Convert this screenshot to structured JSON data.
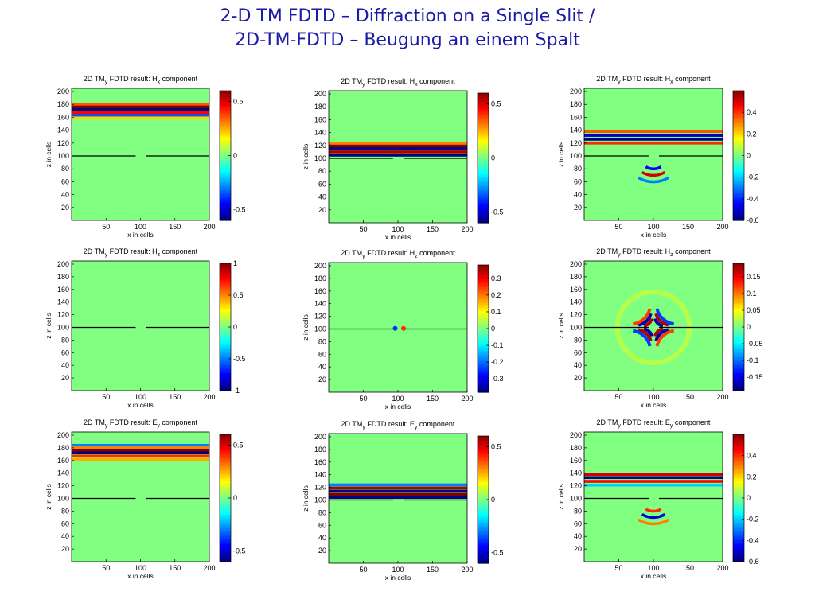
{
  "title": {
    "line1": "2-D TM FDTD – Diffraction on a Single Slit /",
    "line2": "2D-TM-FDTD – Beugung an einem Spalt"
  },
  "colors": {
    "background": "#80ff80",
    "title": "#1a1aa6",
    "slit_line": "#000000"
  },
  "chart_data": [
    {
      "type": "heatmap",
      "title_parts": [
        "2D TM",
        "y",
        " FDTD result: H",
        "x",
        " component"
      ],
      "xlabel": "x in cells",
      "ylabel": "z in cells",
      "xlim": [
        0,
        200
      ],
      "ylim": [
        0,
        205
      ],
      "xticks": [
        50,
        100,
        150,
        200
      ],
      "yticks": [
        20,
        40,
        60,
        80,
        100,
        120,
        140,
        160,
        180,
        200
      ],
      "colorbar": {
        "min": -0.6,
        "max": 0.6,
        "ticks": [
          0.5,
          0,
          -0.5
        ],
        "tick_labels": [
          "0.5",
          "0",
          "-0.5"
        ]
      },
      "slit": {
        "z": 100,
        "x_from": 93,
        "x_to": 108
      },
      "wave": {
        "bands": [
          {
            "z": 180,
            "v": 0.35
          },
          {
            "z": 176,
            "v": 0.6
          },
          {
            "z": 172,
            "v": -0.6
          },
          {
            "z": 167,
            "v": 0.45
          },
          {
            "z": 163,
            "v": -0.35
          },
          {
            "z": 159,
            "v": 0.2
          }
        ]
      }
    },
    {
      "type": "heatmap",
      "title_parts": [
        "2D TM",
        "y",
        " FDTD result: H",
        "x",
        " component"
      ],
      "xlabel": "x in cells",
      "ylabel": "z in cells",
      "xlim": [
        0,
        200
      ],
      "ylim": [
        0,
        205
      ],
      "xticks": [
        50,
        100,
        150,
        200
      ],
      "yticks": [
        20,
        40,
        60,
        80,
        100,
        120,
        140,
        160,
        180,
        200
      ],
      "colorbar": {
        "min": -0.6,
        "max": 0.6,
        "ticks": [
          0.5,
          0,
          -0.5
        ],
        "tick_labels": [
          "0.5",
          "0",
          "-0.5"
        ]
      },
      "slit": {
        "z": 100,
        "x_from": 93,
        "x_to": 108
      },
      "wave": {
        "bands": [
          {
            "z": 123,
            "v": 0.3
          },
          {
            "z": 119,
            "v": 0.6
          },
          {
            "z": 115,
            "v": -0.6
          },
          {
            "z": 110,
            "v": 0.55
          },
          {
            "z": 105,
            "v": -0.65
          }
        ]
      }
    },
    {
      "type": "heatmap",
      "title_parts": [
        "2D TM",
        "y",
        " FDTD result: H",
        "x",
        " component"
      ],
      "xlabel": "x in cells",
      "ylabel": "z in cells",
      "xlim": [
        0,
        200
      ],
      "ylim": [
        0,
        205
      ],
      "xticks": [
        50,
        100,
        150,
        200
      ],
      "yticks": [
        20,
        40,
        60,
        80,
        100,
        120,
        140,
        160,
        180,
        200
      ],
      "colorbar": {
        "min": -0.6,
        "max": 0.6,
        "ticks": [
          0.4,
          0.2,
          0,
          -0.2,
          -0.4,
          -0.6
        ],
        "tick_labels": [
          "0.4",
          "0.2",
          "0",
          "-0.2",
          "-0.4",
          "-0.6"
        ]
      },
      "slit": {
        "z": 100,
        "x_from": 93,
        "x_to": 108
      },
      "wave": {
        "bands": [
          {
            "z": 138,
            "v": 0.35
          },
          {
            "z": 132,
            "v": -0.5
          },
          {
            "z": 126,
            "v": -0.6
          },
          {
            "z": 120,
            "v": 0.4
          }
        ],
        "rings": [
          {
            "r": 20,
            "v": -0.45
          },
          {
            "r": 30,
            "v": 0.5
          },
          {
            "r": 40,
            "v": -0.3
          }
        ]
      }
    },
    {
      "type": "heatmap",
      "title_parts": [
        "2D TM",
        "y",
        " FDTD result: H",
        "z",
        " component"
      ],
      "xlabel": "x in cells",
      "ylabel": "z in cells",
      "xlim": [
        0,
        200
      ],
      "ylim": [
        0,
        205
      ],
      "xticks": [
        50,
        100,
        150,
        200
      ],
      "yticks": [
        20,
        40,
        60,
        80,
        100,
        120,
        140,
        160,
        180,
        200
      ],
      "colorbar": {
        "min": -1,
        "max": 1,
        "ticks": [
          1,
          0.5,
          0,
          -0.5,
          -1
        ],
        "tick_labels": [
          "1",
          "0.5",
          "0",
          "-0.5",
          "-1"
        ]
      },
      "slit": {
        "z": 100,
        "x_from": 93,
        "x_to": 108
      },
      "wave": {
        "bands": []
      }
    },
    {
      "type": "heatmap",
      "title_parts": [
        "2D TM",
        "y",
        " FDTD result: H",
        "z",
        " component"
      ],
      "xlabel": "x in cells",
      "ylabel": "z in cells",
      "xlim": [
        0,
        200
      ],
      "ylim": [
        0,
        205
      ],
      "xticks": [
        50,
        100,
        150,
        200
      ],
      "yticks": [
        20,
        40,
        60,
        80,
        100,
        120,
        140,
        160,
        180,
        200
      ],
      "colorbar": {
        "min": -0.38,
        "max": 0.38,
        "ticks": [
          0.3,
          0.2,
          0.1,
          0,
          -0.1,
          -0.2,
          -0.3
        ],
        "tick_labels": [
          "0.3",
          "0.2",
          "0.1",
          "0",
          "-0.1",
          "-0.2",
          "-0.3"
        ]
      },
      "slit": {
        "z": 100,
        "x_from": 93,
        "x_to": 108
      },
      "wave": {
        "bands": [],
        "spots": [
          {
            "x": 96,
            "z": 101,
            "v": -0.25
          },
          {
            "x": 108,
            "z": 101,
            "v": 0.25
          }
        ]
      }
    },
    {
      "type": "heatmap",
      "title_parts": [
        "2D TM",
        "y",
        " FDTD result: H",
        "z",
        " component"
      ],
      "xlabel": "x in cells",
      "ylabel": "z in cells",
      "xlim": [
        0,
        200
      ],
      "ylim": [
        0,
        205
      ],
      "xticks": [
        50,
        100,
        150,
        200
      ],
      "yticks": [
        20,
        40,
        60,
        80,
        100,
        120,
        140,
        160,
        180,
        200
      ],
      "colorbar": {
        "min": -0.19,
        "max": 0.19,
        "ticks": [
          0.15,
          0.1,
          0.05,
          0,
          -0.05,
          -0.1,
          -0.15
        ],
        "tick_labels": [
          "0.15",
          "0.1",
          "0.05",
          "0",
          "-0.05",
          "-0.1",
          "-0.15"
        ]
      },
      "slit": {
        "z": 100,
        "x_from": 93,
        "x_to": 108
      },
      "wave": {
        "bands": [],
        "pattern": "quadrupole"
      }
    },
    {
      "type": "heatmap",
      "title_parts": [
        "2D TM",
        "y",
        " FDTD result: E",
        "y",
        " component"
      ],
      "xlabel": "x in cells",
      "ylabel": "z in cells",
      "xlim": [
        0,
        200
      ],
      "ylim": [
        0,
        205
      ],
      "xticks": [
        50,
        100,
        150,
        200
      ],
      "yticks": [
        20,
        40,
        60,
        80,
        100,
        120,
        140,
        160,
        180,
        200
      ],
      "colorbar": {
        "min": -0.6,
        "max": 0.6,
        "ticks": [
          0.5,
          0,
          -0.5
        ],
        "tick_labels": [
          "0.5",
          "0",
          "-0.5"
        ]
      },
      "slit": {
        "z": 100,
        "x_from": 93,
        "x_to": 108
      },
      "wave": {
        "bands": [
          {
            "z": 184,
            "v": -0.3
          },
          {
            "z": 180,
            "v": 0.3
          },
          {
            "z": 176,
            "v": 0.6
          },
          {
            "z": 172,
            "v": -0.6
          },
          {
            "z": 167,
            "v": 0.4
          },
          {
            "z": 162,
            "v": 0.25
          }
        ]
      }
    },
    {
      "type": "heatmap",
      "title_parts": [
        "2D TM",
        "y",
        " FDTD result: E",
        "y",
        " component"
      ],
      "xlabel": "x in cells",
      "ylabel": "z in cells",
      "xlim": [
        0,
        200
      ],
      "ylim": [
        0,
        205
      ],
      "xticks": [
        50,
        100,
        150,
        200
      ],
      "yticks": [
        20,
        40,
        60,
        80,
        100,
        120,
        140,
        160,
        180,
        200
      ],
      "colorbar": {
        "min": -0.6,
        "max": 0.6,
        "ticks": [
          0.5,
          0,
          -0.5
        ],
        "tick_labels": [
          "0.5",
          "0",
          "-0.5"
        ]
      },
      "slit": {
        "z": 100,
        "x_from": 93,
        "x_to": 108
      },
      "wave": {
        "bands": [
          {
            "z": 124,
            "v": -0.3
          },
          {
            "z": 119,
            "v": 0.55
          },
          {
            "z": 114,
            "v": -0.6
          },
          {
            "z": 109,
            "v": 0.6
          },
          {
            "z": 104,
            "v": -0.7
          }
        ]
      }
    },
    {
      "type": "heatmap",
      "title_parts": [
        "2D TM",
        "y",
        " FDTD result: E",
        "y",
        " component"
      ],
      "xlabel": "x in cells",
      "ylabel": "z in cells",
      "xlim": [
        0,
        200
      ],
      "ylim": [
        0,
        205
      ],
      "xticks": [
        50,
        100,
        150,
        200
      ],
      "yticks": [
        20,
        40,
        60,
        80,
        100,
        120,
        140,
        160,
        180,
        200
      ],
      "colorbar": {
        "min": -0.6,
        "max": 0.6,
        "ticks": [
          0.4,
          0.2,
          0,
          -0.2,
          -0.4,
          -0.6
        ],
        "tick_labels": [
          "0.4",
          "0.2",
          "0",
          "-0.2",
          "-0.4",
          "-0.6"
        ]
      },
      "slit": {
        "z": 100,
        "x_from": 93,
        "x_to": 108
      },
      "wave": {
        "bands": [
          {
            "z": 138,
            "v": 0.5
          },
          {
            "z": 133,
            "v": -0.6
          },
          {
            "z": 127,
            "v": 0.45
          },
          {
            "z": 121,
            "v": -0.2
          }
        ],
        "rings": [
          {
            "r": 20,
            "v": 0.4
          },
          {
            "r": 30,
            "v": -0.5
          },
          {
            "r": 40,
            "v": 0.3
          }
        ]
      }
    }
  ]
}
